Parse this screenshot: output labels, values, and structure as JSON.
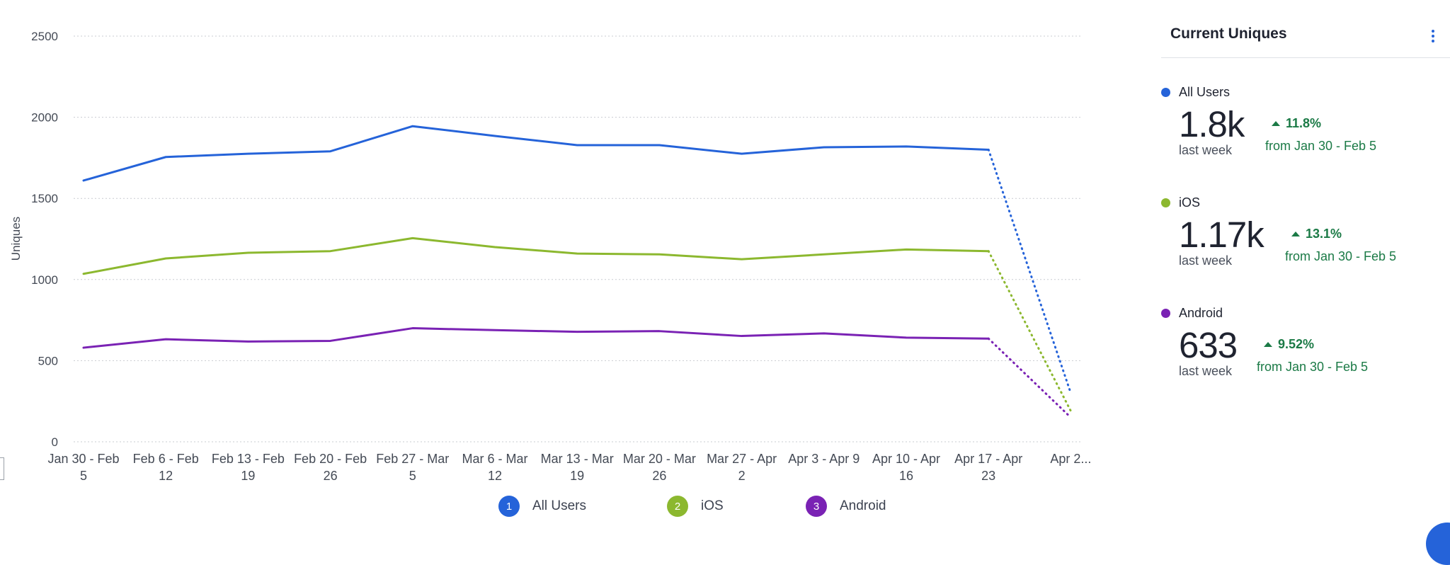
{
  "chart_data": {
    "type": "line",
    "ylabel": "Uniques",
    "ylim": [
      0,
      2500
    ],
    "yticks": [
      0,
      500,
      1000,
      1500,
      2000,
      2500
    ],
    "categories": [
      [
        "Jan 30 - Feb",
        "5"
      ],
      [
        "Feb 6 - Feb",
        "12"
      ],
      [
        "Feb 13 - Feb",
        "19"
      ],
      [
        "Feb 20 - Feb",
        "26"
      ],
      [
        "Feb 27 - Mar",
        "5"
      ],
      [
        "Mar 6 - Mar",
        "12"
      ],
      [
        "Mar 13 - Mar",
        "19"
      ],
      [
        "Mar 20 - Mar",
        "26"
      ],
      [
        "Mar 27 - Apr",
        "2"
      ],
      [
        "Apr 3 - Apr 9",
        ""
      ],
      [
        "Apr 10 - Apr",
        "16"
      ],
      [
        "Apr 17 - Apr",
        "23"
      ],
      [
        "Apr 2...",
        ""
      ]
    ],
    "incomplete_from_index": 11,
    "series": [
      {
        "name": "All Users",
        "color": "#2563d9",
        "values": [
          1610,
          1755,
          1775,
          1790,
          1945,
          1885,
          1828,
          1828,
          1775,
          1815,
          1820,
          1800,
          300
        ]
      },
      {
        "name": "iOS",
        "color": "#8cb82f",
        "values": [
          1035,
          1130,
          1165,
          1175,
          1255,
          1200,
          1160,
          1155,
          1125,
          1155,
          1185,
          1175,
          190
        ]
      },
      {
        "name": "Android",
        "color": "#7a22b4",
        "values": [
          580,
          632,
          618,
          622,
          700,
          688,
          678,
          682,
          652,
          668,
          642,
          636,
          150
        ]
      }
    ],
    "legend_position": "bottom",
    "grid": true
  },
  "legend": [
    {
      "num": "1",
      "label": "All Users",
      "color": "#2563d9"
    },
    {
      "num": "2",
      "label": "iOS",
      "color": "#8cb82f"
    },
    {
      "num": "3",
      "label": "Android",
      "color": "#7a22b4"
    }
  ],
  "panel": {
    "title": "Current Uniques",
    "metrics": [
      {
        "name": "All Users",
        "color": "#2563d9",
        "value": "1.8k",
        "sub": "last week",
        "change": "11.8%",
        "from": "from Jan 30 - Feb 5"
      },
      {
        "name": "iOS",
        "color": "#8cb82f",
        "value": "1.17k",
        "sub": "last week",
        "change": "13.1%",
        "from": "from Jan 30 - Feb 5"
      },
      {
        "name": "Android",
        "color": "#7a22b4",
        "value": "633",
        "sub": "last week",
        "change": "9.52%",
        "from": "from Jan 30 - Feb 5"
      }
    ]
  }
}
